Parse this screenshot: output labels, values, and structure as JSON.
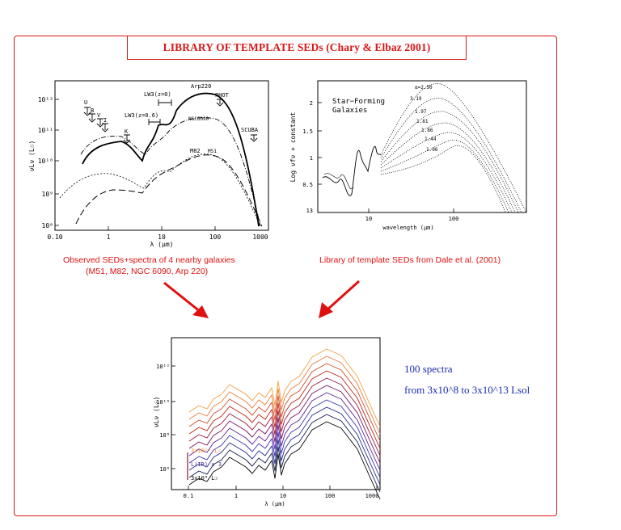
{
  "title": "LIBRARY OF TEMPLATE SEDs (Chary & Elbaz 2001)",
  "left_panel": {
    "caption_line1": "Observed SEDs+spectra of 4 nearby galaxies",
    "caption_line2": "(M51, M82, NGC 6090, Arp 220)",
    "ylabel": "νLν (L☉)",
    "xlabel": "λ (μm)",
    "x_ticks": [
      "0.10",
      "1",
      "10",
      "100",
      "1000"
    ],
    "y_ticks": [
      "10¹²",
      "10¹¹",
      "10¹⁰",
      "10⁹",
      "10⁸"
    ],
    "annotations": {
      "u": "U",
      "b": "B",
      "v": "V",
      "i": "I",
      "k": "K",
      "lw3_z0": "LW3(z=0)",
      "lw3_z06": "LW3(z=0.6)",
      "arp220": "Arp220",
      "phot": "PHOT",
      "ngc6090": "NGC6090",
      "m82": "M82",
      "m51": "M51",
      "scuba": "SCUBA"
    }
  },
  "right_panel": {
    "caption": "Library of template SEDs from Dale et al. (2001)",
    "ylabel": "Log νfν + constant",
    "xlabel": "wavelength (μm)",
    "x_ticks": [
      "10",
      "100"
    ],
    "y_ticks": [
      "2",
      "1.5",
      "1",
      "0.5",
      "13"
    ],
    "panel_label_line1": "Star−Forming",
    "panel_label_line2": "Galaxies",
    "alpha_labels": [
      "α=2.50",
      "3.19",
      "1.97",
      "1.81",
      "1.86",
      "1.44",
      "1.06"
    ]
  },
  "bottom_panel": {
    "ylabel": "νLν (L☉)",
    "xlabel": "λ (μm)",
    "x_ticks": [
      "0.1",
      "1",
      "10",
      "100",
      "1000"
    ],
    "y_ticks": [
      "10¹²",
      "10¹⁰",
      "10⁸",
      "10⁶"
    ],
    "legend_top": "3x10¹³ L☉",
    "legend_mid": "L(IR) x 3",
    "legend_bottom": "3x10⁸ L☉",
    "line_colors": [
      "#f0a040",
      "#ea7a38",
      "#d04a28",
      "#c02010",
      "#9a1838",
      "#7a1060",
      "#5a2098",
      "#3a30b0",
      "#202a90",
      "#101848",
      "#000000"
    ]
  },
  "side_note": {
    "line1_count": "100",
    "line1_rest": "spectra",
    "line2": "from 3x10^8 to 3x10^13 Lsol"
  },
  "colors": {
    "accent_red": "#d81818",
    "note_blue": "#1a2cb0"
  }
}
